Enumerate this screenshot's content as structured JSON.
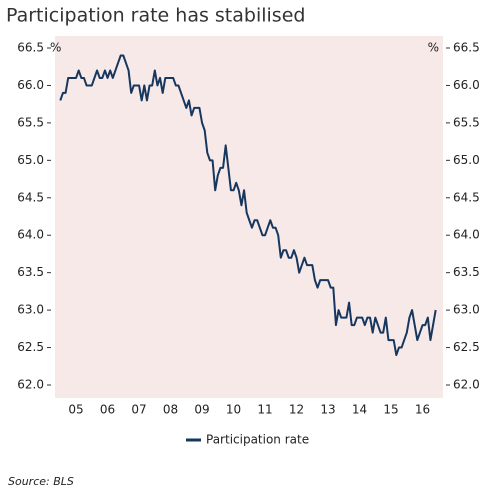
{
  "chart_data": {
    "type": "line",
    "title": "Participation rate has stabilised",
    "source": "Source: BLS",
    "ylabel": "%",
    "y2label": "%",
    "categories": [
      null,
      null,
      null,
      null,
      null,
      null,
      "05",
      null,
      null,
      null,
      null,
      null,
      null,
      null,
      null,
      null,
      null,
      null,
      "06",
      null,
      null,
      null,
      null,
      null,
      null,
      null,
      null,
      null,
      null,
      null,
      "07",
      null,
      null,
      null,
      null,
      null,
      null,
      null,
      null,
      null,
      null,
      null,
      "08",
      null,
      null,
      null,
      null,
      null,
      null,
      null,
      null,
      null,
      null,
      null,
      "09",
      null,
      null,
      null,
      null,
      null,
      null,
      null,
      null,
      null,
      null,
      null,
      "10",
      null,
      null,
      null,
      null,
      null,
      null,
      null,
      null,
      null,
      null,
      null,
      "11",
      null,
      null,
      null,
      null,
      null,
      null,
      null,
      null,
      null,
      null,
      null,
      "12",
      null,
      null,
      null,
      null,
      null,
      null,
      null,
      null,
      null,
      null,
      null,
      "13",
      null,
      null,
      null,
      null,
      null,
      null,
      null,
      null,
      null,
      null,
      null,
      "14",
      null,
      null,
      null,
      null,
      null,
      null,
      null,
      null,
      null,
      null,
      null,
      "15",
      null,
      null,
      null,
      null,
      null,
      null,
      null,
      null,
      null,
      null,
      null,
      "16",
      null,
      null,
      null,
      null,
      null
    ],
    "series": [
      {
        "name": "Participation rate",
        "color": "#17375e",
        "values": [
          65.8,
          65.9,
          65.9,
          66.1,
          66.1,
          66.1,
          66.1,
          66.2,
          66.1,
          66.1,
          66.0,
          66.0,
          66.0,
          66.1,
          66.2,
          66.1,
          66.1,
          66.2,
          66.1,
          66.2,
          66.1,
          66.2,
          66.3,
          66.4,
          66.4,
          66.3,
          66.2,
          65.9,
          66.0,
          66.0,
          66.0,
          65.8,
          66.0,
          65.8,
          66.0,
          66.0,
          66.2,
          66.0,
          66.1,
          65.9,
          66.1,
          66.1,
          66.1,
          66.1,
          66.0,
          66.0,
          65.9,
          65.8,
          65.7,
          65.8,
          65.6,
          65.7,
          65.7,
          65.7,
          65.5,
          65.4,
          65.1,
          65.0,
          65.0,
          64.6,
          64.8,
          64.9,
          64.9,
          65.2,
          64.9,
          64.6,
          64.6,
          64.7,
          64.6,
          64.4,
          64.6,
          64.3,
          64.2,
          64.1,
          64.2,
          64.2,
          64.1,
          64.0,
          64.0,
          64.1,
          64.2,
          64.1,
          64.1,
          64.0,
          63.7,
          63.8,
          63.8,
          63.7,
          63.7,
          63.8,
          63.7,
          63.5,
          63.6,
          63.7,
          63.6,
          63.6,
          63.6,
          63.4,
          63.3,
          63.4,
          63.4,
          63.4,
          63.4,
          63.3,
          63.3,
          62.8,
          63.0,
          62.9,
          62.9,
          62.9,
          63.1,
          62.8,
          62.8,
          62.9,
          62.9,
          62.9,
          62.8,
          62.9,
          62.9,
          62.7,
          62.9,
          62.8,
          62.7,
          62.7,
          62.9,
          62.6,
          62.6,
          62.6,
          62.4,
          62.5,
          62.5,
          62.6,
          62.7,
          62.9,
          63.0,
          62.8,
          62.6,
          62.7,
          62.8,
          62.8,
          62.9,
          62.6,
          62.8,
          63.0
        ]
      }
    ],
    "ylim": [
      62,
      66.5
    ],
    "yticks": [
      {
        "value": 62,
        "label": "62.0"
      },
      62.5,
      {
        "value": 63,
        "label": "63.0"
      },
      63.5,
      {
        "value": 64,
        "label": "64.0"
      },
      64.5,
      {
        "value": 65,
        "label": "65.0"
      },
      65.5,
      {
        "value": 66,
        "label": "66.0"
      },
      66.5
    ],
    "y2lim": [
      62,
      66.5
    ],
    "y2ticks": [
      {
        "value": 62,
        "label": "62.0"
      },
      62.5,
      {
        "value": 63,
        "label": "63.0"
      },
      63.5,
      {
        "value": 64,
        "label": "64.0"
      },
      64.5,
      {
        "value": 65,
        "label": "65.0"
      },
      65.5,
      {
        "value": 66,
        "label": "66.0"
      },
      66.5
    ],
    "legend": "bottom"
  }
}
